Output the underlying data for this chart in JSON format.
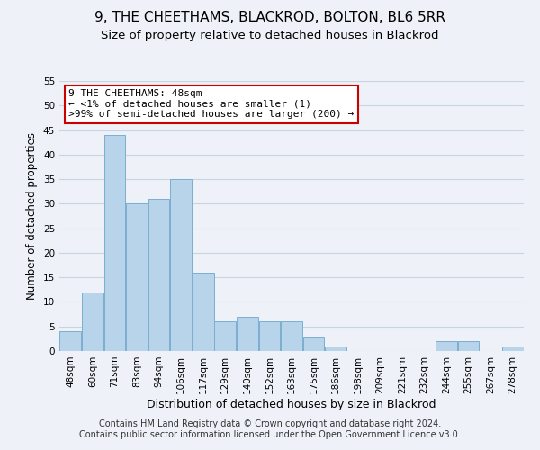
{
  "title": "9, THE CHEETHAMS, BLACKROD, BOLTON, BL6 5RR",
  "subtitle": "Size of property relative to detached houses in Blackrod",
  "xlabel": "Distribution of detached houses by size in Blackrod",
  "ylabel": "Number of detached properties",
  "bar_color": "#b8d4ea",
  "bar_edge_color": "#7aaed0",
  "bin_labels": [
    "48sqm",
    "60sqm",
    "71sqm",
    "83sqm",
    "94sqm",
    "106sqm",
    "117sqm",
    "129sqm",
    "140sqm",
    "152sqm",
    "163sqm",
    "175sqm",
    "186sqm",
    "198sqm",
    "209sqm",
    "221sqm",
    "232sqm",
    "244sqm",
    "255sqm",
    "267sqm",
    "278sqm"
  ],
  "bar_heights": [
    4,
    12,
    44,
    30,
    31,
    35,
    16,
    6,
    7,
    6,
    6,
    3,
    1,
    0,
    0,
    0,
    0,
    2,
    2,
    0,
    1
  ],
  "ylim": [
    0,
    55
  ],
  "yticks": [
    0,
    5,
    10,
    15,
    20,
    25,
    30,
    35,
    40,
    45,
    50,
    55
  ],
  "annotation_title": "9 THE CHEETHAMS: 48sqm",
  "annotation_line1": "← <1% of detached houses are smaller (1)",
  "annotation_line2": ">99% of semi-detached houses are larger (200) →",
  "annotation_box_color": "#ffffff",
  "annotation_box_edge_color": "#cc0000",
  "footer_line1": "Contains HM Land Registry data © Crown copyright and database right 2024.",
  "footer_line2": "Contains public sector information licensed under the Open Government Licence v3.0.",
  "background_color": "#eef2f8",
  "plot_background_color": "#eef2f8",
  "grid_color": "#c8d4e0",
  "title_fontsize": 11,
  "subtitle_fontsize": 9.5,
  "xlabel_fontsize": 9,
  "ylabel_fontsize": 8.5,
  "tick_fontsize": 7.5,
  "footer_fontsize": 7
}
